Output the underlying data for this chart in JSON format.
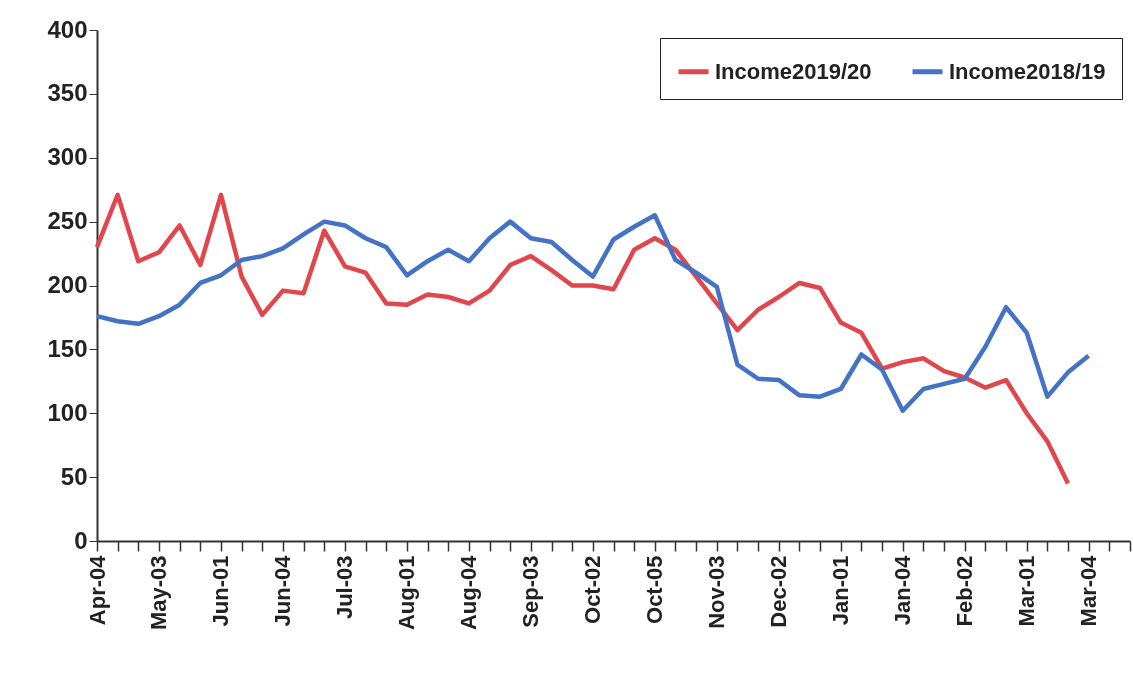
{
  "chart_data": {
    "type": "line",
    "categories": [
      "Apr-04",
      null,
      null,
      "May-03",
      null,
      null,
      "Jun-01",
      null,
      null,
      "Jun-04",
      null,
      null,
      "Jul-03",
      null,
      null,
      "Aug-01",
      null,
      null,
      "Aug-04",
      null,
      null,
      "Sep-03",
      null,
      null,
      "Oct-02",
      null,
      null,
      "Oct-05",
      null,
      null,
      "Nov-03",
      null,
      null,
      "Dec-02",
      null,
      null,
      "Jan-01",
      null,
      null,
      "Jan-04",
      null,
      null,
      "Feb-02",
      null,
      null,
      "Mar-01",
      null,
      null,
      "Mar-04",
      null,
      null
    ],
    "series": [
      {
        "name": "Income2019/20",
        "color": "#e0474c",
        "values": [
          230,
          271,
          219,
          226,
          247,
          216,
          271,
          207,
          177,
          196,
          194,
          243,
          215,
          210,
          186,
          185,
          193,
          191,
          186,
          196,
          216,
          223,
          212,
          200,
          200,
          197,
          228,
          237,
          228,
          207,
          186,
          165,
          181,
          191,
          202,
          198,
          171,
          163,
          135,
          140,
          143,
          133,
          128,
          120,
          126,
          100,
          78,
          45,
          null,
          null,
          null
        ]
      },
      {
        "name": "Income2018/19",
        "color": "#4472c4",
        "values": [
          176,
          172,
          170,
          176,
          185,
          202,
          208,
          220,
          223,
          229,
          240,
          250,
          247,
          237,
          230,
          208,
          219,
          228,
          219,
          237,
          250,
          237,
          234,
          220,
          207,
          236,
          246,
          255,
          220,
          210,
          199,
          138,
          127,
          126,
          114,
          113,
          119,
          146,
          134,
          102,
          119,
          123,
          127,
          152,
          183,
          163,
          113,
          132,
          145,
          null,
          null
        ]
      }
    ],
    "ylim": [
      0,
      400
    ],
    "yticks": [
      0,
      50,
      100,
      150,
      200,
      250,
      300,
      350,
      400
    ],
    "legend": "top right",
    "line_style": "solid",
    "marker": "none"
  }
}
